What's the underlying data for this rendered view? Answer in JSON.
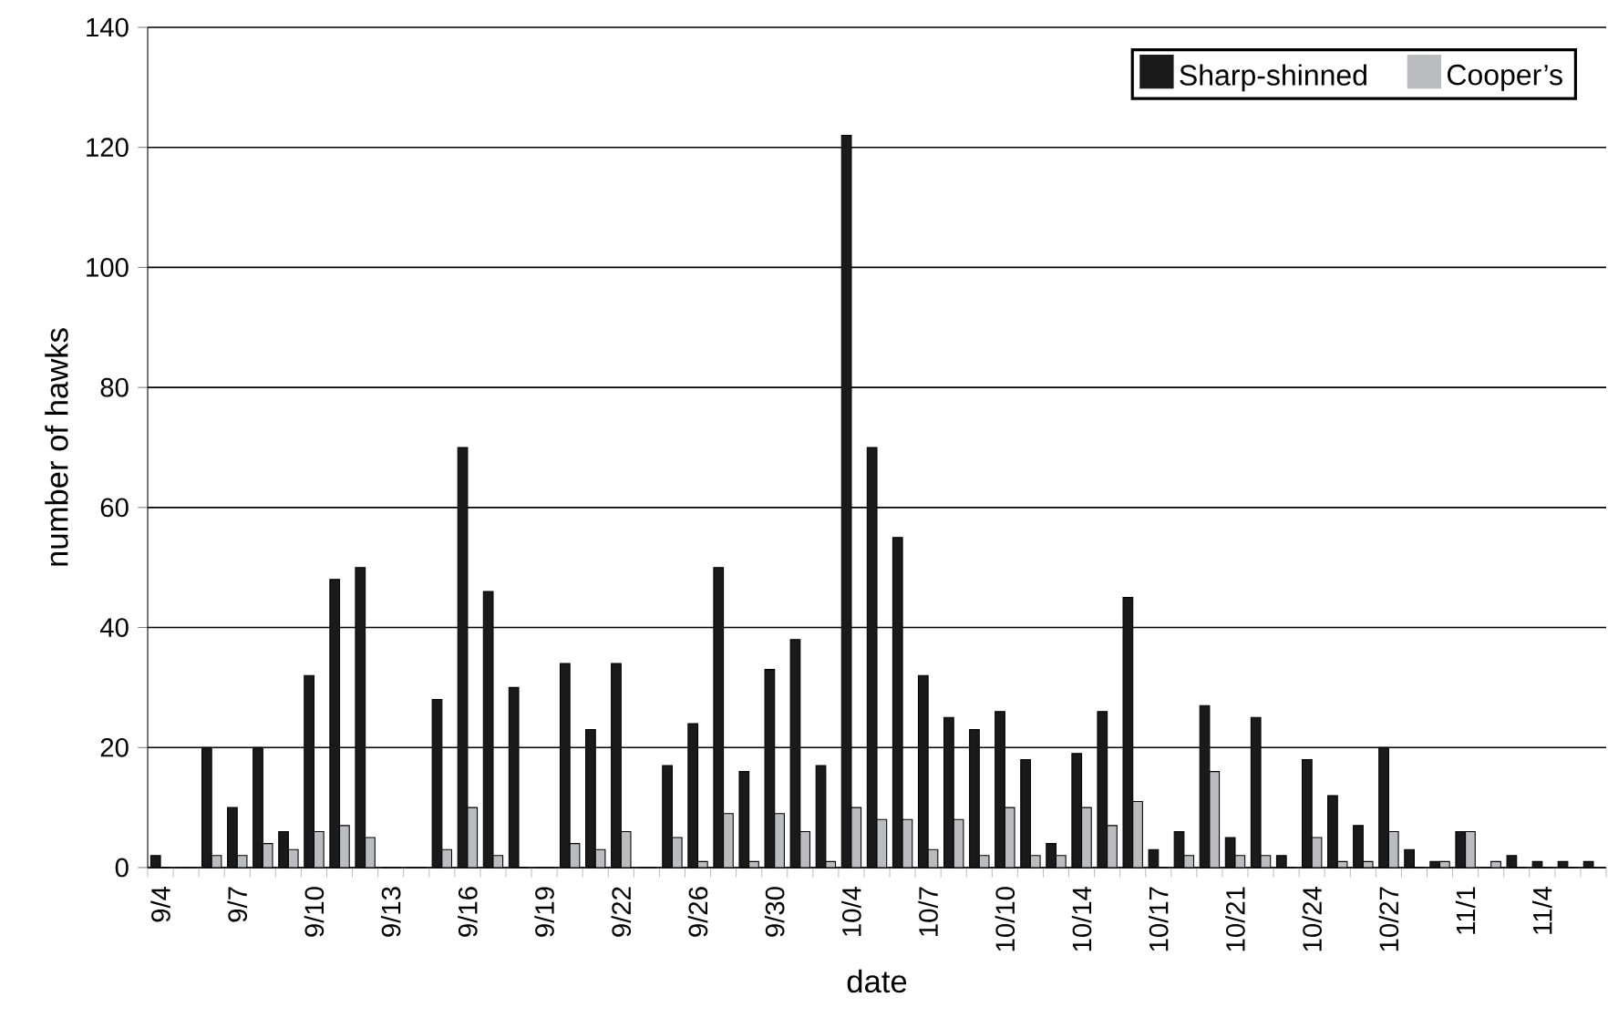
{
  "chart_data": {
    "type": "bar",
    "xlabel": "date",
    "ylabel": "number of hawks",
    "categories": [
      "9/4",
      null,
      null,
      "9/7",
      null,
      null,
      "9/10",
      null,
      null,
      "9/13",
      null,
      null,
      "9/16",
      null,
      null,
      "9/19",
      null,
      null,
      "9/22",
      null,
      null,
      "9/26",
      null,
      null,
      "9/30",
      null,
      null,
      "10/4",
      null,
      null,
      "10/7",
      null,
      null,
      "10/10",
      null,
      null,
      "10/14",
      null,
      null,
      "10/17",
      null,
      null,
      "10/21",
      null,
      null,
      "10/24",
      null,
      null,
      "10/27",
      null,
      null,
      "11/1",
      null,
      null,
      "11/4",
      null,
      null
    ],
    "series": [
      {
        "name": "Sharp-shinned",
        "color": "#1a1a1a",
        "values": [
          2,
          0,
          20,
          10,
          20,
          6,
          32,
          48,
          50,
          0,
          0,
          28,
          70,
          46,
          30,
          0,
          34,
          23,
          34,
          0,
          17,
          24,
          50,
          16,
          33,
          38,
          17,
          122,
          70,
          55,
          32,
          25,
          23,
          26,
          18,
          4,
          19,
          26,
          45,
          3,
          6,
          27,
          5,
          25,
          2,
          18,
          12,
          7,
          20,
          3,
          1,
          6,
          0,
          2,
          1,
          1,
          1
        ]
      },
      {
        "name": "Cooper’s",
        "color": "#bbbcc0",
        "values": [
          0,
          0,
          2,
          2,
          4,
          3,
          6,
          7,
          5,
          0,
          0,
          3,
          10,
          2,
          0,
          0,
          4,
          3,
          6,
          0,
          5,
          1,
          9,
          1,
          9,
          6,
          1,
          10,
          8,
          8,
          3,
          8,
          2,
          10,
          2,
          2,
          10,
          7,
          11,
          0,
          2,
          16,
          2,
          2,
          0,
          5,
          1,
          1,
          6,
          0,
          1,
          6,
          1,
          0,
          0,
          0,
          0
        ]
      }
    ],
    "ylim": [
      0,
      140
    ],
    "yticks": [
      0,
      20,
      40,
      60,
      80,
      100,
      120,
      140
    ],
    "grid": "y",
    "legend": "top right"
  }
}
